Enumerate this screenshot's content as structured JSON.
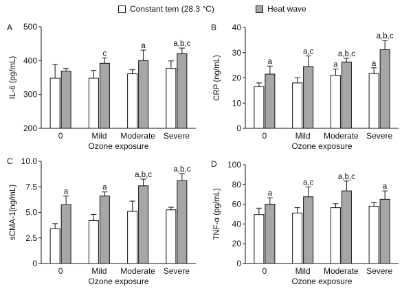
{
  "legend": {
    "items": [
      {
        "label": "Constant tem (28.3 °C)",
        "color": "#ffffff"
      },
      {
        "label": "Heat wave",
        "color": "#a6a6a6"
      }
    ]
  },
  "chart_data": [
    {
      "type": "bar",
      "panel": "A",
      "ylabel": "IL-6 (pg/mL)",
      "xlabel": "Ozone exposure",
      "categories": [
        "0",
        "Mild",
        "Moderate",
        "Severe"
      ],
      "ylim": [
        200,
        500
      ],
      "yticks": [
        "200",
        "300",
        "400",
        "500"
      ],
      "series": [
        {
          "name": "Constant tem (28.3 °C)",
          "color": "#ffffff",
          "values": [
            348,
            348,
            361,
            377
          ],
          "errors": [
            41,
            23,
            12,
            22
          ]
        },
        {
          "name": "Heat wave",
          "color": "#a6a6a6",
          "values": [
            369,
            392,
            400,
            421
          ],
          "errors": [
            8,
            16,
            31,
            16
          ]
        }
      ],
      "annotations": [
        {
          "category": "Mild",
          "series": "Heat wave",
          "text": "c"
        },
        {
          "category": "Moderate",
          "series": "Heat wave",
          "text": "a"
        },
        {
          "category": "Severe",
          "series": "Heat wave",
          "text": "a,b,c"
        }
      ]
    },
    {
      "type": "bar",
      "panel": "B",
      "ylabel": "CRP (ng/mL)",
      "xlabel": "Ozone exposure",
      "categories": [
        "0",
        "Mild",
        "Moderate",
        "Severe"
      ],
      "ylim": [
        0,
        40
      ],
      "yticks": [
        "0",
        "10",
        "20",
        "30",
        "40"
      ],
      "series": [
        {
          "name": "Constant tem (28.3 °C)",
          "color": "#ffffff",
          "values": [
            16.5,
            18,
            21,
            21.7
          ],
          "errors": [
            1.5,
            2,
            2.5,
            2.3
          ]
        },
        {
          "name": "Heat wave",
          "color": "#a6a6a6",
          "values": [
            21.5,
            24.5,
            26.3,
            31.2
          ],
          "errors": [
            3.2,
            4.2,
            1.5,
            3.6
          ]
        }
      ],
      "annotations": [
        {
          "category": "0",
          "series": "Heat wave",
          "text": "a"
        },
        {
          "category": "Mild",
          "series": "Heat wave",
          "text": "a,c"
        },
        {
          "category": "Moderate",
          "series": "Constant tem (28.3 °C)",
          "text": "a"
        },
        {
          "category": "Moderate",
          "series": "Heat wave",
          "text": "a,b,c"
        },
        {
          "category": "Severe",
          "series": "Constant tem (28.3 °C)",
          "text": "a"
        },
        {
          "category": "Severe",
          "series": "Heat wave",
          "text": "a,b,c"
        }
      ]
    },
    {
      "type": "bar",
      "panel": "C",
      "ylabel": "sCMA-1(ng/mL)",
      "xlabel": "Ozone exposure",
      "categories": [
        "0",
        "Mild",
        "Moderate",
        "Severe"
      ],
      "ylim": [
        0,
        10
      ],
      "yticks": [
        "0",
        "2.5",
        "5.0",
        "7.5",
        "10.0"
      ],
      "series": [
        {
          "name": "Constant tem (28.3 °C)",
          "color": "#ffffff",
          "values": [
            3.4,
            4.2,
            5.1,
            5.25
          ],
          "errors": [
            0.5,
            0.6,
            1.0,
            0.25
          ]
        },
        {
          "name": "Heat wave",
          "color": "#a6a6a6",
          "values": [
            5.75,
            6.6,
            7.6,
            8.1
          ],
          "errors": [
            0.85,
            0.4,
            0.65,
            0.7
          ]
        }
      ],
      "annotations": [
        {
          "category": "0",
          "series": "Heat wave",
          "text": "a"
        },
        {
          "category": "Mild",
          "series": "Heat wave",
          "text": "a"
        },
        {
          "category": "Moderate",
          "series": "Heat wave",
          "text": "a,b,c"
        },
        {
          "category": "Severe",
          "series": "Heat wave",
          "text": "a,b,c"
        }
      ]
    },
    {
      "type": "bar",
      "panel": "D",
      "ylabel": "TNF-α (pg/mL)",
      "xlabel": "Ozone exposure",
      "categories": [
        "0",
        "Mild",
        "Moderate",
        "Severe"
      ],
      "ylim": [
        0,
        100
      ],
      "yticks": [
        "0",
        "20",
        "40",
        "60",
        "80",
        "100"
      ],
      "series": [
        {
          "name": "Constant tem (28.3 °C)",
          "color": "#ffffff",
          "values": [
            49.5,
            51,
            56.5,
            58
          ],
          "errors": [
            6.5,
            5.5,
            4,
            3.5
          ]
        },
        {
          "name": "Heat wave",
          "color": "#a6a6a6",
          "values": [
            60,
            67.5,
            73.5,
            65
          ],
          "errors": [
            6.5,
            10,
            10,
            8.5
          ]
        }
      ],
      "annotations": [
        {
          "category": "0",
          "series": "Heat wave",
          "text": "a"
        },
        {
          "category": "Mild",
          "series": "Heat wave",
          "text": "a,c"
        },
        {
          "category": "Moderate",
          "series": "Heat wave",
          "text": "a,b,c"
        },
        {
          "category": "Severe",
          "series": "Heat wave",
          "text": "a"
        }
      ]
    }
  ]
}
